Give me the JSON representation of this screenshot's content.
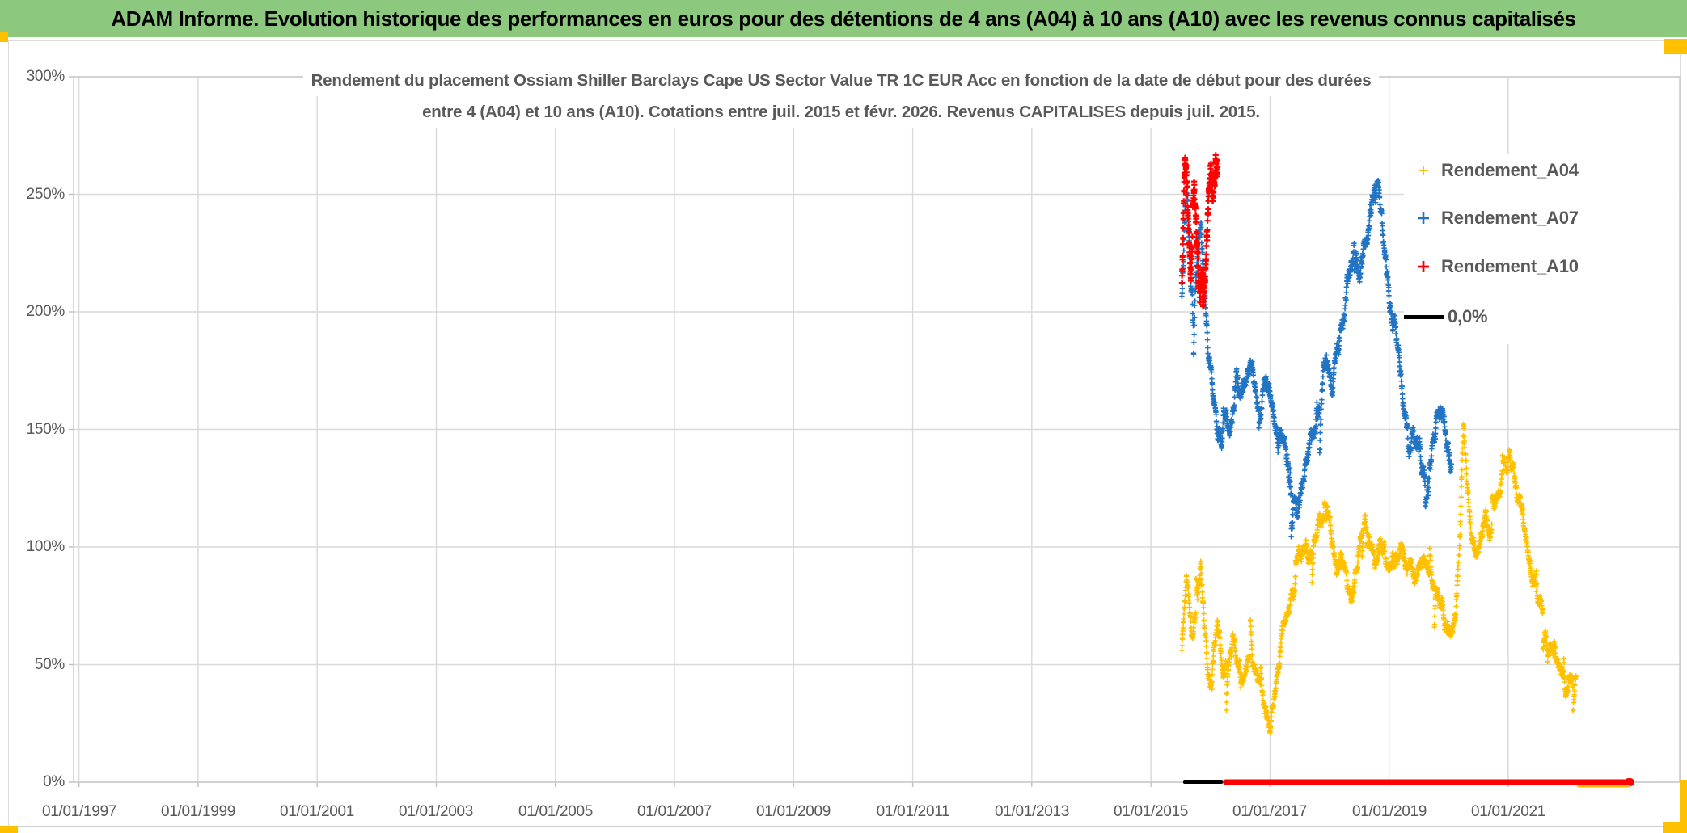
{
  "header": {
    "title": "ADAM Informe. Evolution historique des performances en euros pour des détentions de 4 ans (A04) à 10 ans (A10) avec les revenus connus capitalisés",
    "bg_color": "#8CC87D",
    "text_color": "#000000"
  },
  "accent_gold": "#FFC000",
  "chart_data": {
    "type": "scatter",
    "title": [
      "Rendement du placement Ossiam Shiller Barclays Cape US Sector Value TR 1C EUR Acc en fonction de la date de début pour des durées",
      "entre 4 (A04) et 10 ans (A10). Cotations entre juil. 2015 et févr. 2026. Revenus CAPITALISES depuis juil. 2015."
    ],
    "text_color": "#595959",
    "grid_color": "#D9D9D9",
    "grid": true,
    "legend_position": "right-top",
    "x_axis": {
      "tick_labels": [
        "01/01/1997",
        "01/01/1999",
        "01/01/2001",
        "01/01/2003",
        "01/01/2005",
        "01/01/2007",
        "01/01/2009",
        "01/01/2011",
        "01/01/2013",
        "01/01/2015",
        "01/01/2017",
        "01/01/2019",
        "01/01/2021"
      ],
      "tick_years": [
        1997,
        1999,
        2001,
        2003,
        2005,
        2007,
        2009,
        2011,
        2013,
        2015,
        2017,
        2019,
        2021
      ],
      "range_years": [
        1996.91,
        2023.88
      ]
    },
    "y_axis": {
      "tick_labels": [
        "0%",
        "50%",
        "100%",
        "150%",
        "200%",
        "250%",
        "300%"
      ],
      "tick_values": [
        0,
        50,
        100,
        150,
        200,
        250,
        300
      ],
      "range": [
        0,
        300
      ]
    },
    "series": [
      {
        "name": "Rendement_A04",
        "color": "#FFC000",
        "marker": "plus",
        "seed": 11,
        "jitter": 2.0,
        "points_per_year": 280,
        "half": 3.2,
        "stroke": 1.6,
        "anchors": [
          [
            2015.52,
            56
          ],
          [
            2015.56,
            74
          ],
          [
            2015.6,
            86
          ],
          [
            2015.65,
            76
          ],
          [
            2015.7,
            62
          ],
          [
            2015.75,
            70
          ],
          [
            2015.8,
            83
          ],
          [
            2015.84,
            93
          ],
          [
            2015.88,
            76
          ],
          [
            2015.92,
            60
          ],
          [
            2015.97,
            47
          ],
          [
            2016.02,
            42
          ],
          [
            2016.07,
            60
          ],
          [
            2016.12,
            70
          ],
          [
            2016.18,
            56
          ],
          [
            2016.24,
            47
          ],
          [
            2016.31,
            55
          ],
          [
            2016.38,
            62
          ],
          [
            2016.45,
            50
          ],
          [
            2016.52,
            43
          ],
          [
            2016.6,
            51
          ],
          [
            2016.68,
            57
          ],
          [
            2016.76,
            47
          ],
          [
            2016.84,
            39
          ],
          [
            2016.92,
            31
          ],
          [
            2017.0,
            28
          ],
          [
            2017.06,
            36
          ],
          [
            2017.13,
            48
          ],
          [
            2017.2,
            60
          ],
          [
            2017.28,
            69
          ],
          [
            2017.36,
            79
          ],
          [
            2017.44,
            89
          ],
          [
            2017.52,
            96
          ],
          [
            2017.6,
            103
          ],
          [
            2017.68,
            96
          ],
          [
            2017.76,
            104
          ],
          [
            2017.84,
            111
          ],
          [
            2017.92,
            116
          ],
          [
            2018.0,
            112
          ],
          [
            2018.06,
            99
          ],
          [
            2018.12,
            87
          ],
          [
            2018.2,
            95
          ],
          [
            2018.28,
            84
          ],
          [
            2018.36,
            77
          ],
          [
            2018.44,
            89
          ],
          [
            2018.52,
            101
          ],
          [
            2018.6,
            109
          ],
          [
            2018.68,
            100
          ],
          [
            2018.76,
            93
          ],
          [
            2018.84,
            101
          ],
          [
            2018.92,
            96
          ],
          [
            2019.0,
            89
          ],
          [
            2019.1,
            96
          ],
          [
            2019.2,
            101
          ],
          [
            2019.3,
            92
          ],
          [
            2019.4,
            86
          ],
          [
            2019.5,
            91
          ],
          [
            2019.6,
            97
          ],
          [
            2019.7,
            89
          ],
          [
            2019.8,
            81
          ],
          [
            2019.88,
            73
          ],
          [
            2019.96,
            66
          ],
          [
            2020.04,
            61
          ],
          [
            2020.12,
            72
          ],
          [
            2020.19,
            105
          ],
          [
            2020.25,
            152
          ],
          [
            2020.31,
            128
          ],
          [
            2020.38,
            108
          ],
          [
            2020.46,
            96
          ],
          [
            2020.54,
            106
          ],
          [
            2020.62,
            115
          ],
          [
            2020.7,
            108
          ],
          [
            2020.78,
            117
          ],
          [
            2020.86,
            126
          ],
          [
            2020.94,
            136
          ],
          [
            2021.02,
            140
          ],
          [
            2021.1,
            129
          ],
          [
            2021.18,
            117
          ],
          [
            2021.26,
            107
          ],
          [
            2021.34,
            97
          ],
          [
            2021.42,
            86
          ],
          [
            2021.5,
            76
          ],
          [
            2021.58,
            69
          ],
          [
            2021.66,
            61
          ],
          [
            2021.74,
            56
          ],
          [
            2021.82,
            49
          ],
          [
            2021.9,
            43
          ],
          [
            2021.98,
            37
          ],
          [
            2022.06,
            39
          ],
          [
            2022.14,
            45
          ]
        ]
      },
      {
        "name": "Rendement_A07",
        "color": "#2173C4",
        "marker": "plus",
        "seed": 22,
        "jitter": 2.6,
        "points_per_year": 280,
        "half": 3.2,
        "stroke": 1.7,
        "anchors": [
          [
            2015.52,
            206
          ],
          [
            2015.56,
            236
          ],
          [
            2015.6,
            263
          ],
          [
            2015.64,
            238
          ],
          [
            2015.68,
            214
          ],
          [
            2015.72,
            194
          ],
          [
            2015.76,
            211
          ],
          [
            2015.8,
            229
          ],
          [
            2015.84,
            241
          ],
          [
            2015.88,
            221
          ],
          [
            2015.92,
            201
          ],
          [
            2015.96,
            188
          ],
          [
            2016.01,
            177
          ],
          [
            2016.07,
            157
          ],
          [
            2016.13,
            143
          ],
          [
            2016.19,
            151
          ],
          [
            2016.25,
            161
          ],
          [
            2016.31,
            152
          ],
          [
            2016.37,
            162
          ],
          [
            2016.43,
            171
          ],
          [
            2016.51,
            161
          ],
          [
            2016.59,
            169
          ],
          [
            2016.67,
            176
          ],
          [
            2016.75,
            165
          ],
          [
            2016.83,
            158
          ],
          [
            2016.91,
            168
          ],
          [
            2016.99,
            162
          ],
          [
            2017.07,
            154
          ],
          [
            2017.15,
            147
          ],
          [
            2017.23,
            139
          ],
          [
            2017.31,
            131
          ],
          [
            2017.39,
            124
          ],
          [
            2017.47,
            120
          ],
          [
            2017.55,
            127
          ],
          [
            2017.63,
            135
          ],
          [
            2017.71,
            146
          ],
          [
            2017.79,
            156
          ],
          [
            2017.87,
            166
          ],
          [
            2017.95,
            179
          ],
          [
            2018.03,
            169
          ],
          [
            2018.11,
            181
          ],
          [
            2018.19,
            193
          ],
          [
            2018.27,
            206
          ],
          [
            2018.35,
            216
          ],
          [
            2018.43,
            226
          ],
          [
            2018.51,
            218
          ],
          [
            2018.59,
            229
          ],
          [
            2018.67,
            236
          ],
          [
            2018.75,
            249
          ],
          [
            2018.81,
            259
          ],
          [
            2018.87,
            241
          ],
          [
            2018.93,
            221
          ],
          [
            2019.01,
            204
          ],
          [
            2019.09,
            194
          ],
          [
            2019.17,
            184
          ],
          [
            2019.25,
            159
          ],
          [
            2019.33,
            137
          ],
          [
            2019.41,
            149
          ],
          [
            2019.49,
            141
          ],
          [
            2019.57,
            134
          ],
          [
            2019.65,
            127
          ],
          [
            2019.73,
            141
          ],
          [
            2019.81,
            153
          ],
          [
            2019.89,
            159
          ],
          [
            2019.97,
            147
          ],
          [
            2020.05,
            134
          ]
        ]
      },
      {
        "name": "Rendement_A10",
        "color": "#FF0000",
        "marker": "plus",
        "seed": 33,
        "jitter": 3.2,
        "points_per_year": 430,
        "half": 3.6,
        "stroke": 2.2,
        "anchors": [
          [
            2015.52,
            212
          ],
          [
            2015.55,
            242
          ],
          [
            2015.58,
            266
          ],
          [
            2015.61,
            250
          ],
          [
            2015.64,
            229
          ],
          [
            2015.67,
            214
          ],
          [
            2015.7,
            236
          ],
          [
            2015.73,
            254
          ],
          [
            2015.76,
            239
          ],
          [
            2015.79,
            221
          ],
          [
            2015.82,
            206
          ],
          [
            2015.85,
            216
          ],
          [
            2015.88,
            201
          ],
          [
            2015.91,
            217
          ],
          [
            2015.94,
            231
          ],
          [
            2015.97,
            246
          ],
          [
            2016.0,
            257
          ],
          [
            2016.03,
            247
          ],
          [
            2016.06,
            259
          ],
          [
            2016.09,
            266
          ],
          [
            2016.12,
            254
          ]
        ]
      }
    ],
    "zero_line": {
      "label": "0,0%",
      "segments": [
        {
          "year_from": 2015.54,
          "year_to": 2016.21,
          "color": "#000000",
          "thickness": 4,
          "dy": 0
        },
        {
          "year_from": 2016.21,
          "year_to": 2023.1,
          "color": "#FF0000",
          "thickness": 7,
          "dy": 0
        },
        {
          "year_from": 2022.95,
          "year_to": 2023.12,
          "color": "#FF0000",
          "thickness": 10,
          "dy": 0
        },
        {
          "year_from": 2022.16,
          "year_to": 2023.05,
          "color": "#FFC000",
          "thickness": 3,
          "dy": 5
        }
      ]
    },
    "legend": {
      "items": [
        {
          "label": "Rendement_A04",
          "color": "#FFC000",
          "type": "plus",
          "size": 12,
          "stroke": 2.0
        },
        {
          "label": "Rendement_A07",
          "color": "#2173C4",
          "type": "plus",
          "size": 14,
          "stroke": 2.6
        },
        {
          "label": "Rendement_A10",
          "color": "#FF0000",
          "type": "plus",
          "size": 14,
          "stroke": 2.8
        },
        {
          "label": "0,0%",
          "color": "#000000",
          "type": "line"
        }
      ]
    }
  }
}
